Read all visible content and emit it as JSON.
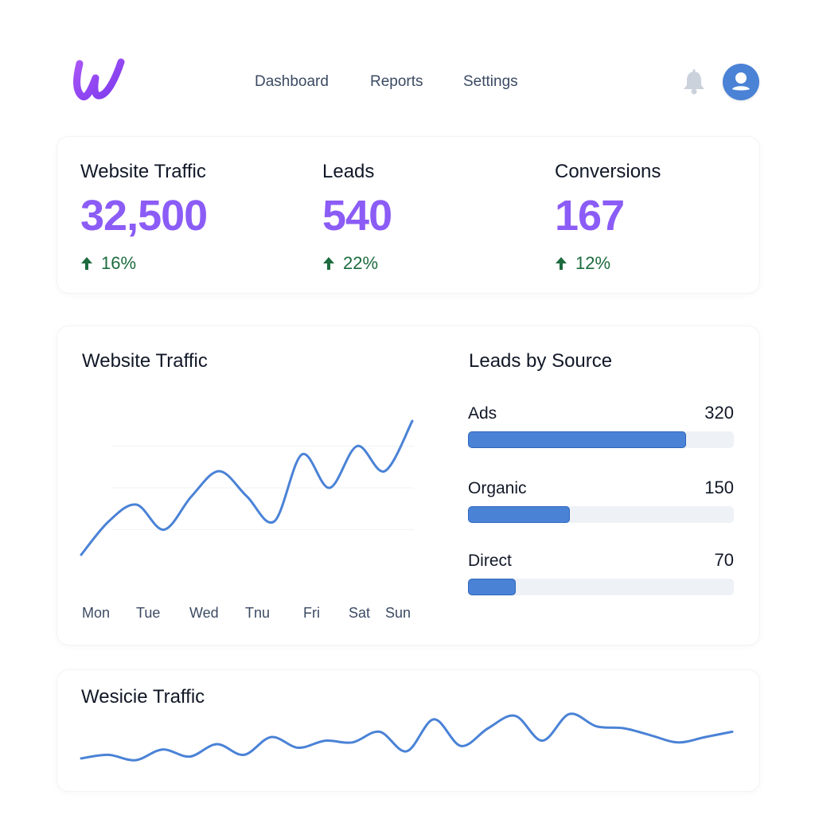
{
  "colors": {
    "brand": "#8b5cf6",
    "accent_blue": "#4a82d6",
    "positive": "#1d6b3e",
    "text_primary": "#111827",
    "text_secondary": "#3b4a63"
  },
  "header": {
    "logo_icon": "brand-w-logo",
    "nav": [
      "Dashboard",
      "Reports",
      "Settings"
    ],
    "notification_icon": "bell-icon",
    "avatar_icon": "user-avatar-icon"
  },
  "kpis": [
    {
      "label": "Website Traffic",
      "value": "32,500",
      "delta": "16%",
      "delta_icon": "arrow-up-icon"
    },
    {
      "label": "Leads",
      "value": "540",
      "delta": "22%",
      "delta_icon": "arrow-up-icon"
    },
    {
      "label": "Conversions",
      "value": "167",
      "delta": "12%",
      "delta_icon": "arrow-up-icon"
    }
  ],
  "traffic_chart": {
    "title": "Website Traffic",
    "days": [
      "Mon",
      "Tue",
      "Wed",
      "Tnu",
      "Fri",
      "Sat",
      "Sun"
    ]
  },
  "leads_by_source": {
    "title": "Leads by Source",
    "max": 390,
    "items": [
      {
        "name": "Ads",
        "value": 320
      },
      {
        "name": "Organic",
        "value": 150
      },
      {
        "name": "Direct",
        "value": 70
      }
    ]
  },
  "bottom_chart": {
    "title": "Wesicie Traffic"
  },
  "chart_data": [
    {
      "type": "line",
      "title": "Website Traffic",
      "xlabel": "",
      "ylabel": "",
      "x": [
        0,
        0.5,
        1,
        1.5,
        2,
        2.5,
        3,
        3.5,
        4,
        4.5,
        5,
        5.5,
        6
      ],
      "y": [
        10,
        30,
        40,
        25,
        45,
        60,
        45,
        30,
        70,
        50,
        75,
        60,
        90
      ],
      "categories": [
        "Mon",
        "Tue",
        "Wed",
        "Tnu",
        "Fri",
        "Sat",
        "Sun"
      ],
      "ylim": [
        0,
        100
      ],
      "grid": true
    },
    {
      "type": "bar",
      "title": "Leads by Source",
      "categories": [
        "Ads",
        "Organic",
        "Direct"
      ],
      "values": [
        320,
        150,
        70
      ],
      "orientation": "horizontal"
    },
    {
      "type": "line",
      "title": "Wesicie Traffic",
      "x": [
        0,
        1,
        2,
        3,
        4,
        5,
        6,
        7,
        8,
        9,
        10,
        11,
        12,
        13,
        14,
        15,
        16,
        17,
        18,
        19,
        20,
        21,
        22,
        23,
        24
      ],
      "y": [
        10,
        14,
        8,
        20,
        12,
        26,
        14,
        34,
        22,
        30,
        28,
        40,
        18,
        54,
        24,
        44,
        58,
        30,
        60,
        46,
        44,
        36,
        28,
        34,
        40
      ],
      "ylim": [
        0,
        70
      ],
      "grid": false
    }
  ]
}
